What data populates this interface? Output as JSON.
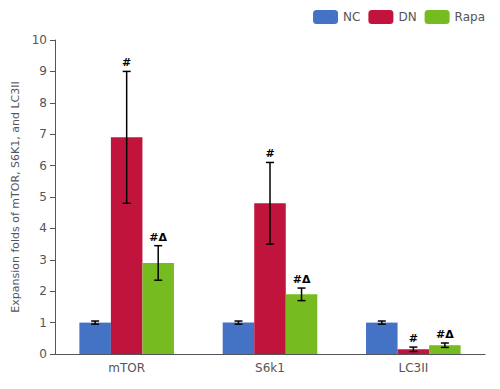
{
  "chart_data": {
    "type": "bar",
    "categories": [
      "mTOR",
      "S6k1",
      "LC3II"
    ],
    "series": [
      {
        "name": "NC",
        "color": "#4472C4",
        "values": [
          1.0,
          1.0,
          1.0
        ],
        "errors": [
          0.05,
          0.05,
          0.05
        ]
      },
      {
        "name": "DN",
        "color": "#C0143C",
        "values": [
          6.9,
          4.8,
          0.15
        ],
        "errors": [
          2.1,
          1.3,
          0.07
        ],
        "annotations": [
          "#",
          "#",
          "#"
        ]
      },
      {
        "name": "Rapa",
        "color": "#76BC21",
        "values": [
          2.9,
          1.9,
          0.28
        ],
        "errors": [
          0.55,
          0.2,
          0.07
        ],
        "annotations": [
          "#Δ",
          "#Δ",
          "#Δ"
        ]
      }
    ],
    "ylabel": "Expansion folds of mTOR, S6K1, and LC3II",
    "ylim": [
      0,
      10
    ],
    "yticks": [
      0,
      1,
      2,
      3,
      4,
      5,
      6,
      7,
      8,
      9,
      10
    ],
    "grid": false,
    "legend": "upper right"
  }
}
